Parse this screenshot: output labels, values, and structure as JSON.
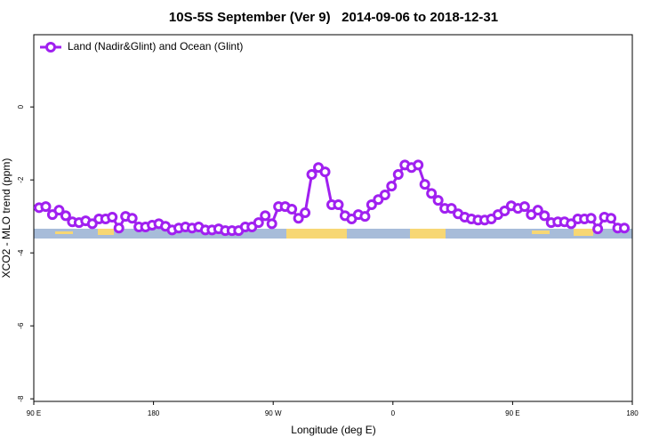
{
  "chart_data": {
    "type": "line",
    "title": "10S-5S September (Ver 9)   2014-09-06 to 2018-12-31",
    "xlabel": "Longitude (deg E)",
    "ylabel": "XCO2 - MLO trend (ppm)",
    "xlim": [
      90,
      540
    ],
    "ylim": [
      -8.07,
      1.98
    ],
    "xticks": [
      {
        "value": 90,
        "label": "90 E"
      },
      180,
      {
        "value": 270,
        "label": "90 W"
      },
      {
        "value": 360,
        "label": "0"
      },
      {
        "value": 450,
        "label": "90 E"
      },
      {
        "value": 540,
        "label": "180"
      }
    ],
    "yticks": [
      0,
      -2,
      -4,
      -6,
      -8
    ],
    "legend": "top-left",
    "x": [
      94,
      99,
      104,
      109,
      114,
      119,
      124,
      129,
      134,
      139,
      144,
      149,
      154,
      159,
      164,
      169,
      174,
      179,
      184,
      189,
      194,
      199,
      204,
      209,
      214,
      219,
      224,
      229,
      234,
      239,
      244,
      249,
      254,
      259,
      264,
      269,
      274,
      279,
      284,
      289,
      294,
      299,
      304,
      309,
      314,
      319,
      324,
      329,
      334,
      339,
      344,
      349,
      354,
      359,
      364,
      369,
      374,
      379,
      384,
      389,
      394,
      399,
      404,
      409,
      414,
      419,
      424,
      429,
      434,
      439,
      444,
      449,
      454,
      459,
      464,
      469,
      474,
      479,
      484,
      489,
      494,
      499,
      504,
      509,
      514,
      519,
      524,
      529,
      534
    ],
    "series": [
      {
        "name": "Land (Nadir&Glint) and Ocean (Glint)",
        "color": "#a020f0",
        "values": [
          -2.76,
          -2.73,
          -2.95,
          -2.83,
          -2.98,
          -3.15,
          -3.17,
          -3.12,
          -3.2,
          -3.07,
          -3.07,
          -3.02,
          -3.32,
          -3.0,
          -3.05,
          -3.29,
          -3.29,
          -3.24,
          -3.2,
          -3.27,
          -3.37,
          -3.32,
          -3.29,
          -3.32,
          -3.29,
          -3.37,
          -3.37,
          -3.34,
          -3.39,
          -3.39,
          -3.39,
          -3.29,
          -3.29,
          -3.17,
          -2.98,
          -3.2,
          -2.73,
          -2.73,
          -2.8,
          -3.05,
          -2.9,
          -1.85,
          -1.66,
          -1.78,
          -2.68,
          -2.68,
          -2.98,
          -3.07,
          -2.95,
          -3.0,
          -2.68,
          -2.54,
          -2.41,
          -2.17,
          -1.85,
          -1.59,
          -1.66,
          -1.59,
          -2.12,
          -2.37,
          -2.56,
          -2.78,
          -2.78,
          -2.93,
          -3.02,
          -3.07,
          -3.1,
          -3.1,
          -3.07,
          -2.95,
          -2.85,
          -2.71,
          -2.78,
          -2.73,
          -2.95,
          -2.83,
          -2.98,
          -3.17,
          -3.15,
          -3.15,
          -3.2,
          -3.07,
          -3.07,
          -3.05,
          -3.34,
          -3.02,
          -3.05,
          -3.32,
          -3.32
        ]
      }
    ]
  }
}
